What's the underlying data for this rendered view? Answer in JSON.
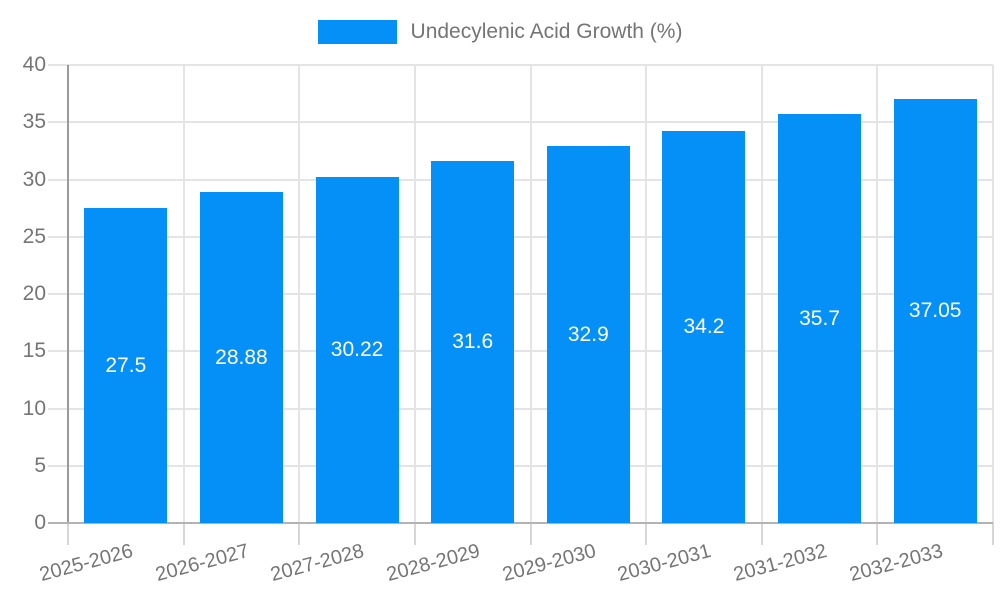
{
  "chart_data": {
    "type": "bar",
    "title": "Undecylenic Acid Growth (%)",
    "categories": [
      "2025-2026",
      "2026-2027",
      "2027-2028",
      "2028-2029",
      "2029-2030",
      "2030-2031",
      "2031-2032",
      "2032-2033"
    ],
    "values": [
      27.5,
      28.88,
      30.22,
      31.6,
      32.9,
      34.2,
      35.7,
      37.05
    ],
    "bar_labels": [
      "27.5",
      "28.88",
      "30.22",
      "31.6",
      "32.9",
      "34.2",
      "35.7",
      "37.05"
    ],
    "xlabel": "",
    "ylabel": "",
    "ylim": [
      0,
      40
    ],
    "yticks": [
      0,
      5,
      10,
      15,
      20,
      25,
      30,
      35,
      40
    ],
    "grid": true,
    "legend_position": "top-center",
    "bar_label_position": "inside-center",
    "x_label_rotation_deg": -15
  },
  "legend": {
    "label": "Undecylenic Acid Growth (%)"
  },
  "colors": {
    "bar": "#0590f8",
    "grid": "#e4e4e4",
    "axis": "#9a9a9a",
    "baseline": "#b3b3b3",
    "tick": "#d6d6d6",
    "tick_text": "#757575",
    "bar_label_text": "#ffffff",
    "background": "#ffffff"
  }
}
